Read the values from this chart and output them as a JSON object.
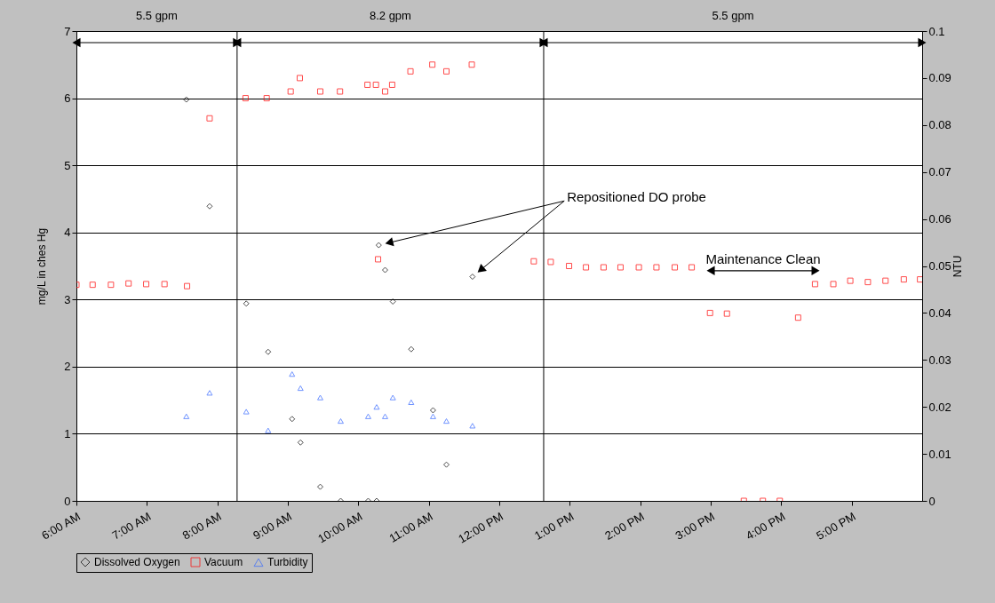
{
  "chart_data": {
    "type": "scatter",
    "ylabel": "mg/L in ches Hg",
    "y2label": "NTU",
    "xlim": [
      6,
      18
    ],
    "xticks": [
      {
        "value": 6,
        "label": "6:00 AM"
      },
      {
        "value": 7,
        "label": "7:00 AM"
      },
      {
        "value": 8,
        "label": "8:00 AM"
      },
      {
        "value": 9,
        "label": "9:00 AM"
      },
      {
        "value": 10,
        "label": "10:00 AM"
      },
      {
        "value": 11,
        "label": "11:00 AM"
      },
      {
        "value": 12,
        "label": "12:00 PM"
      },
      {
        "value": 13,
        "label": "1:00 PM"
      },
      {
        "value": 14,
        "label": "2:00 PM"
      },
      {
        "value": 15,
        "label": "3:00 PM"
      },
      {
        "value": 16,
        "label": "4:00 PM"
      },
      {
        "value": 17,
        "label": "5:00 PM"
      }
    ],
    "ylim": [
      0,
      7
    ],
    "yticks": [
      0,
      1,
      2,
      3,
      4,
      5,
      6,
      7
    ],
    "y2lim": [
      0,
      0.1
    ],
    "y2ticks": [
      0,
      0.01,
      0.02,
      0.03,
      0.04,
      0.05,
      0.06,
      0.07,
      0.08,
      0.09,
      0.1
    ],
    "grid": "y",
    "legend": "bottom",
    "series": [
      {
        "name": "Dissolved Oxygen",
        "color": "#000000",
        "marker": "diamond",
        "x": [
          7.56,
          7.89,
          8.41,
          8.72,
          9.06,
          9.18,
          9.46,
          9.75,
          10.14,
          10.26,
          10.29,
          10.38,
          10.49,
          10.75,
          11.06,
          11.25,
          11.62
        ],
        "values": [
          5.98,
          4.39,
          2.94,
          2.22,
          1.22,
          0.87,
          0.21,
          0,
          0,
          0,
          3.81,
          3.44,
          2.97,
          2.26,
          1.35,
          0.54,
          3.34
        ]
      },
      {
        "name": "Vacuum",
        "color": "#ff0000",
        "marker": "square",
        "x": [
          6.0,
          6.23,
          6.49,
          6.74,
          6.99,
          7.25,
          7.57,
          7.89,
          8.4,
          8.7,
          9.04,
          9.17,
          9.46,
          9.74,
          10.13,
          10.25,
          10.28,
          10.38,
          10.48,
          10.74,
          11.05,
          11.25,
          11.61,
          12.49,
          12.73,
          12.99,
          13.23,
          13.48,
          13.72,
          13.98,
          14.23,
          14.49,
          14.73,
          14.99,
          15.23,
          15.47,
          15.74,
          15.98,
          16.24,
          16.48,
          16.74,
          16.98,
          17.23,
          17.48,
          17.74,
          17.97
        ],
        "values": [
          3.22,
          3.22,
          3.22,
          3.24,
          3.23,
          3.23,
          3.2,
          5.7,
          6.0,
          6.0,
          6.1,
          6.3,
          6.1,
          6.1,
          6.2,
          6.2,
          3.6,
          6.1,
          6.2,
          6.4,
          6.5,
          6.4,
          6.5,
          3.57,
          3.56,
          3.5,
          3.48,
          3.48,
          3.48,
          3.48,
          3.48,
          3.48,
          3.48,
          2.8,
          2.79,
          0,
          0,
          0,
          2.73,
          3.23,
          3.23,
          3.28,
          3.26,
          3.28,
          3.3,
          3.3
        ]
      },
      {
        "name": "Turbidity",
        "color": "#3366ff",
        "marker": "triangle",
        "axis": "y2",
        "x": [
          7.56,
          7.89,
          8.41,
          8.72,
          9.06,
          9.18,
          9.46,
          9.75,
          10.14,
          10.26,
          10.38,
          10.49,
          10.75,
          11.06,
          11.25,
          11.62
        ],
        "values": [
          0.018,
          0.023,
          0.019,
          0.015,
          0.027,
          0.024,
          0.022,
          0.017,
          0.018,
          0.02,
          0.018,
          0.022,
          0.021,
          0.018,
          0.017,
          0.016
        ]
      }
    ],
    "ref_lines": [
      {
        "axis": "x",
        "value": 8.28
      },
      {
        "axis": "x",
        "value": 12.63
      }
    ],
    "annotations": [
      "5.5 gpm",
      "8.2 gpm",
      "5.5 gpm",
      "Repositioned DO probe",
      "Maintenance Clean"
    ]
  }
}
